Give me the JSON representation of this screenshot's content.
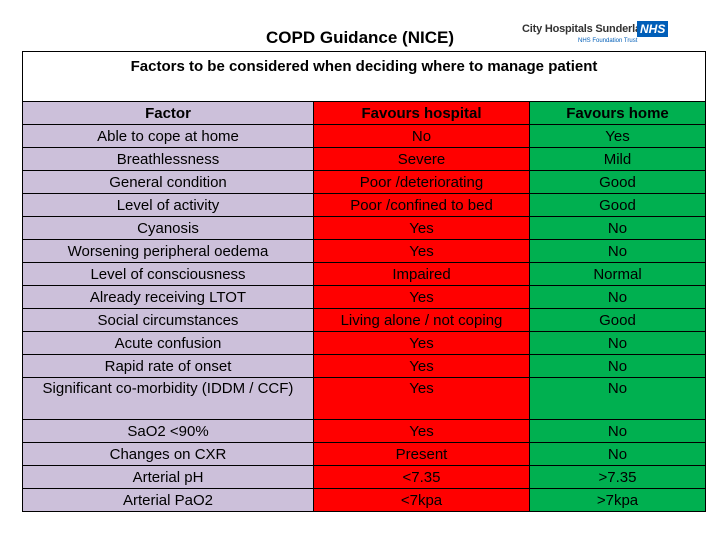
{
  "page": {
    "title": "COPD  Guidance (NICE)"
  },
  "logo": {
    "name": "City Hospitals Sunderland",
    "badge": "NHS",
    "subtitle": "NHS Foundation Trust"
  },
  "colors": {
    "factor_column": "#ccc0da",
    "hospital_column": "#ff0000",
    "home_column": "#00b050",
    "nhs_blue": "#005eb8"
  },
  "table": {
    "caption": "Factors to be considered when deciding where to manage patient",
    "headers": [
      "Factor",
      "Favours hospital",
      "Favours home"
    ],
    "rows": [
      [
        "Able to cope at home",
        "No",
        "Yes"
      ],
      [
        "Breathlessness",
        "Severe",
        "Mild"
      ],
      [
        "General condition",
        "Poor /deteriorating",
        "Good"
      ],
      [
        "Level of activity",
        "Poor /confined to bed",
        "Good"
      ],
      [
        "Cyanosis",
        "Yes",
        "No"
      ],
      [
        "Worsening peripheral oedema",
        "Yes",
        "No"
      ],
      [
        "Level of consciousness",
        "Impaired",
        "Normal"
      ],
      [
        "Already receiving LTOT",
        "Yes",
        "No"
      ],
      [
        "Social circumstances",
        "Living alone / not coping",
        "Good"
      ],
      [
        "Acute confusion",
        "Yes",
        "No"
      ],
      [
        "Rapid rate of onset",
        "Yes",
        "No"
      ],
      [
        "Significant co-morbidity (IDDM / CCF)",
        "Yes",
        "No"
      ],
      [
        "SaO2 <90%",
        "Yes",
        "No"
      ],
      [
        "Changes on CXR",
        "Present",
        "No"
      ],
      [
        "Arterial pH",
        "<7.35",
        ">7.35"
      ],
      [
        "Arterial PaO2",
        "<7kpa",
        ">7kpa"
      ]
    ]
  }
}
